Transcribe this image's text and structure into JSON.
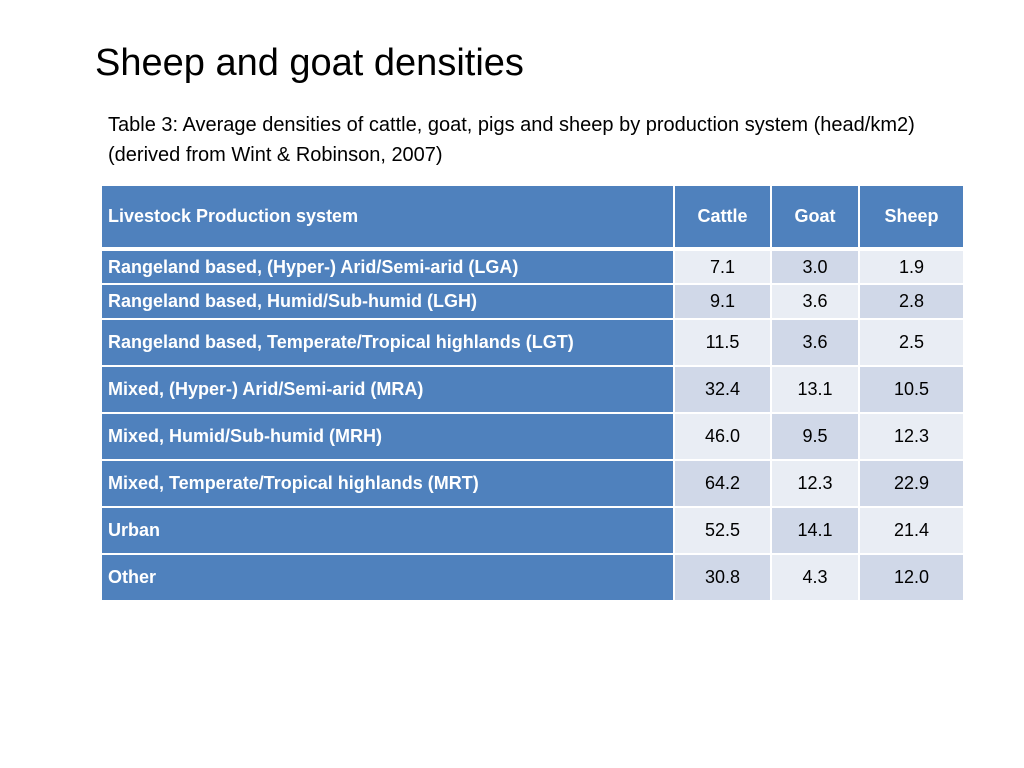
{
  "slide": {
    "title": "Sheep and goat densities",
    "caption": "Table 3: Average densities of cattle, goat, pigs and sheep by production system (head/km2) (derived from Wint & Robinson, 2007)"
  },
  "table": {
    "headers": {
      "system": "Livestock Production system",
      "cattle": "Cattle",
      "goat": "Goat",
      "sheep": "Sheep"
    },
    "rows": [
      {
        "system": "Rangeland based, (Hyper-) Arid/Semi-arid (LGA)",
        "cattle": "7.1",
        "goat": "3.0",
        "sheep": "1.9"
      },
      {
        "system": "Rangeland based, Humid/Sub-humid (LGH)",
        "cattle": "9.1",
        "goat": "3.6",
        "sheep": "2.8"
      },
      {
        "system": "Rangeland based, Temperate/Tropical highlands (LGT)",
        "cattle": "11.5",
        "goat": "3.6",
        "sheep": "2.5"
      },
      {
        "system": "Mixed, (Hyper-) Arid/Semi-arid (MRA)",
        "cattle": "32.4",
        "goat": "13.1",
        "sheep": "10.5"
      },
      {
        "system": "Mixed, Humid/Sub-humid (MRH)",
        "cattle": "46.0",
        "goat": "9.5",
        "sheep": "12.3"
      },
      {
        "system": "Mixed, Temperate/Tropical highlands (MRT)",
        "cattle": "64.2",
        "goat": "12.3",
        "sheep": "22.9"
      },
      {
        "system": "Urban",
        "cattle": "52.5",
        "goat": "14.1",
        "sheep": "21.4"
      },
      {
        "system": "Other",
        "cattle": "30.8",
        "goat": "4.3",
        "sheep": "12.0"
      }
    ]
  },
  "colors": {
    "header_fill": "#4f81bd",
    "band_light": "#e9edf4",
    "band_dark": "#d0d8e8"
  }
}
